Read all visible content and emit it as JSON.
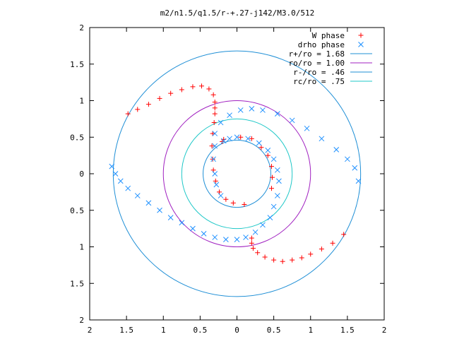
{
  "chart_data": {
    "type": "scatter",
    "title": "m2/n1.5/q1.5/r-+.27-j142/M3.0/512",
    "xlabel": "",
    "ylabel": "",
    "xlim": [
      -2,
      2
    ],
    "ylim": [
      -2,
      2
    ],
    "grid": false,
    "legend_position": "top-right",
    "x_tick_labels": [
      "2",
      "1.5",
      "1",
      "0.5",
      "0",
      "0.5",
      "1",
      "1.5",
      "2"
    ],
    "y_tick_labels": [
      "2",
      "1.5",
      "1",
      "0.5",
      "0",
      "0.5",
      "1",
      "1.5",
      "2"
    ],
    "x_ticks": [
      -2,
      -1.5,
      -1,
      -0.5,
      0,
      0.5,
      1,
      1.5,
      2
    ],
    "y_ticks": [
      2,
      1.5,
      1,
      0.5,
      0,
      -0.5,
      -1,
      -1.5,
      -2
    ],
    "series": [
      {
        "name": "W phase",
        "marker": "+",
        "color": "#ff0000",
        "points": [
          [
            -1.48,
            0.82
          ],
          [
            -1.35,
            0.88
          ],
          [
            -1.2,
            0.95
          ],
          [
            -1.05,
            1.03
          ],
          [
            -0.9,
            1.1
          ],
          [
            -0.75,
            1.15
          ],
          [
            -0.6,
            1.19
          ],
          [
            -0.48,
            1.2
          ],
          [
            -0.38,
            1.16
          ],
          [
            -0.32,
            1.08
          ],
          [
            -0.3,
            0.98
          ],
          [
            -0.3,
            0.9
          ],
          [
            -0.3,
            0.82
          ],
          [
            -0.31,
            0.7
          ],
          [
            -0.33,
            0.55
          ],
          [
            -0.34,
            0.38
          ],
          [
            -0.33,
            0.2
          ],
          [
            -0.32,
            0.05
          ],
          [
            -0.29,
            -0.1
          ],
          [
            -0.24,
            -0.25
          ],
          [
            -0.15,
            -0.35
          ],
          [
            -0.05,
            -0.4
          ],
          [
            0.1,
            -0.42
          ],
          [
            0.05,
            0.5
          ],
          [
            0.2,
            0.48
          ],
          [
            0.33,
            0.36
          ],
          [
            0.42,
            0.25
          ],
          [
            0.47,
            0.1
          ],
          [
            0.48,
            -0.05
          ],
          [
            0.47,
            -0.2
          ],
          [
            -0.18,
            0.47
          ],
          [
            -0.2,
            0.44
          ],
          [
            0.2,
            -0.88
          ],
          [
            0.2,
            -0.95
          ],
          [
            0.22,
            -1.02
          ],
          [
            0.28,
            -1.08
          ],
          [
            0.38,
            -1.14
          ],
          [
            0.5,
            -1.18
          ],
          [
            0.62,
            -1.2
          ],
          [
            0.75,
            -1.18
          ],
          [
            0.88,
            -1.15
          ],
          [
            1.0,
            -1.1
          ],
          [
            1.15,
            -1.03
          ],
          [
            1.3,
            -0.95
          ],
          [
            1.45,
            -0.83
          ]
        ]
      },
      {
        "name": "drho phase",
        "marker": "x",
        "color": "#1e90ff",
        "points": [
          [
            -1.7,
            0.1
          ],
          [
            -1.65,
            0.0
          ],
          [
            -1.58,
            -0.1
          ],
          [
            -1.48,
            -0.2
          ],
          [
            -1.35,
            -0.3
          ],
          [
            -1.2,
            -0.4
          ],
          [
            -1.05,
            -0.5
          ],
          [
            -0.9,
            -0.6
          ],
          [
            -0.75,
            -0.67
          ],
          [
            -0.6,
            -0.75
          ],
          [
            -0.45,
            -0.82
          ],
          [
            -0.3,
            -0.87
          ],
          [
            -0.15,
            -0.9
          ],
          [
            0.0,
            -0.9
          ],
          [
            0.12,
            -0.87
          ],
          [
            0.25,
            -0.8
          ],
          [
            0.35,
            -0.7
          ],
          [
            0.45,
            -0.6
          ],
          [
            0.5,
            -0.45
          ],
          [
            0.55,
            -0.3
          ],
          [
            0.57,
            -0.1
          ],
          [
            0.55,
            0.05
          ],
          [
            0.5,
            0.2
          ],
          [
            0.42,
            0.32
          ],
          [
            0.3,
            0.42
          ],
          [
            0.15,
            0.48
          ],
          [
            0.0,
            0.5
          ],
          [
            -0.1,
            0.48
          ],
          [
            -0.18,
            0.45
          ],
          [
            -0.3,
            0.55
          ],
          [
            -0.22,
            0.7
          ],
          [
            -0.1,
            0.8
          ],
          [
            0.05,
            0.87
          ],
          [
            0.2,
            0.89
          ],
          [
            0.35,
            0.87
          ],
          [
            0.55,
            0.82
          ],
          [
            0.75,
            0.73
          ],
          [
            0.95,
            0.62
          ],
          [
            1.15,
            0.48
          ],
          [
            1.35,
            0.33
          ],
          [
            1.5,
            0.2
          ],
          [
            1.6,
            0.08
          ],
          [
            1.65,
            -0.1
          ],
          [
            -0.3,
            0.38
          ],
          [
            -0.32,
            0.2
          ],
          [
            -0.3,
            0.0
          ],
          [
            -0.28,
            -0.15
          ],
          [
            -0.22,
            -0.3
          ]
        ]
      }
    ],
    "circles": [
      {
        "name": "r+/ro = 1.68",
        "radius": 1.68,
        "color": "#1f8fd6"
      },
      {
        "name": "ro/ro = 1.00",
        "radius": 1.0,
        "color": "#a020c0"
      },
      {
        "name": "r-/ro = .46",
        "radius": 0.46,
        "color": "#1f8fd6"
      },
      {
        "name": "rc/ro = .75",
        "radius": 0.75,
        "color": "#20c8c8"
      }
    ]
  }
}
